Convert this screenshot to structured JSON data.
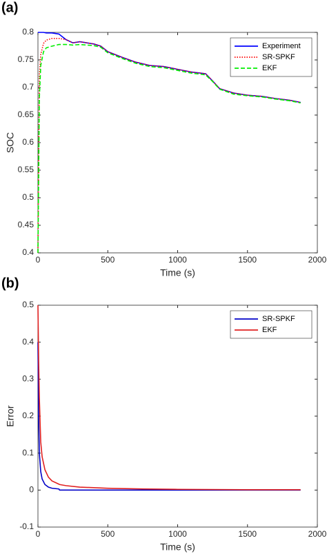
{
  "chart_data": [
    {
      "type": "line",
      "panel_label": "(a)",
      "x_label": "Time (s)",
      "y_label": "SOC",
      "xlim": [
        0,
        2000
      ],
      "xticks": [
        0,
        500,
        1000,
        1500,
        2000
      ],
      "ylim": [
        0.4,
        0.8
      ],
      "yticks": [
        0.4,
        0.45,
        0.5,
        0.55,
        0.6,
        0.65,
        0.7,
        0.75,
        0.8
      ],
      "legend": "upper right",
      "grid": false,
      "x": [
        0,
        10,
        20,
        40,
        60,
        100,
        150,
        200,
        250,
        300,
        350,
        400,
        450,
        500,
        600,
        700,
        800,
        900,
        1000,
        1100,
        1200,
        1250,
        1300,
        1400,
        1500,
        1600,
        1700,
        1800,
        1880
      ],
      "series": [
        {
          "name": "Experiment",
          "color": "#0000ff",
          "line_style": "solid",
          "values": [
            0.8,
            0.8,
            0.8,
            0.8,
            0.799,
            0.799,
            0.797,
            0.787,
            0.781,
            0.783,
            0.781,
            0.779,
            0.775,
            0.765,
            0.755,
            0.746,
            0.74,
            0.738,
            0.733,
            0.728,
            0.725,
            0.712,
            0.698,
            0.69,
            0.686,
            0.684,
            0.68,
            0.677,
            0.673
          ]
        },
        {
          "name": "SR-SPKF",
          "color": "#ff0000",
          "line_style": "dotted",
          "values": [
            0.4,
            0.72,
            0.76,
            0.78,
            0.786,
            0.789,
            0.789,
            0.787,
            0.781,
            0.783,
            0.781,
            0.779,
            0.775,
            0.765,
            0.755,
            0.746,
            0.74,
            0.738,
            0.733,
            0.728,
            0.725,
            0.712,
            0.698,
            0.69,
            0.686,
            0.684,
            0.68,
            0.677,
            0.673
          ]
        },
        {
          "name": "EKF",
          "color": "#00ee00",
          "line_style": "dashed",
          "values": [
            0.4,
            0.68,
            0.74,
            0.765,
            0.772,
            0.775,
            0.778,
            0.778,
            0.777,
            0.778,
            0.777,
            0.776,
            0.773,
            0.763,
            0.753,
            0.744,
            0.738,
            0.736,
            0.731,
            0.726,
            0.723,
            0.711,
            0.697,
            0.688,
            0.685,
            0.683,
            0.679,
            0.676,
            0.672
          ]
        }
      ]
    },
    {
      "type": "line",
      "panel_label": "(b)",
      "x_label": "Time (s)",
      "y_label": "Error",
      "xlim": [
        0,
        2000
      ],
      "xticks": [
        0,
        500,
        1000,
        1500,
        2000
      ],
      "ylim": [
        -0.1,
        0.5
      ],
      "yticks": [
        -0.1,
        0,
        0.1,
        0.2,
        0.3,
        0.4,
        0.5
      ],
      "legend": "upper right",
      "grid": false,
      "x": [
        0,
        5,
        10,
        20,
        30,
        50,
        75,
        100,
        150,
        155,
        200,
        300,
        500,
        750,
        1000,
        1500,
        1880
      ],
      "series": [
        {
          "name": "SR-SPKF",
          "color": "#0000c8",
          "line_style": "solid",
          "values": [
            0.4,
            0.2,
            0.1,
            0.05,
            0.03,
            0.015,
            0.008,
            0.005,
            0.003,
            0,
            0,
            0,
            0,
            0,
            0,
            0,
            0
          ]
        },
        {
          "name": "EKF",
          "color": "#e02020",
          "line_style": "solid",
          "values": [
            0.5,
            0.35,
            0.25,
            0.13,
            0.09,
            0.055,
            0.035,
            0.025,
            0.016,
            0.015,
            0.012,
            0.008,
            0.005,
            0.003,
            0.002,
            0.001,
            0.001
          ]
        }
      ]
    }
  ]
}
